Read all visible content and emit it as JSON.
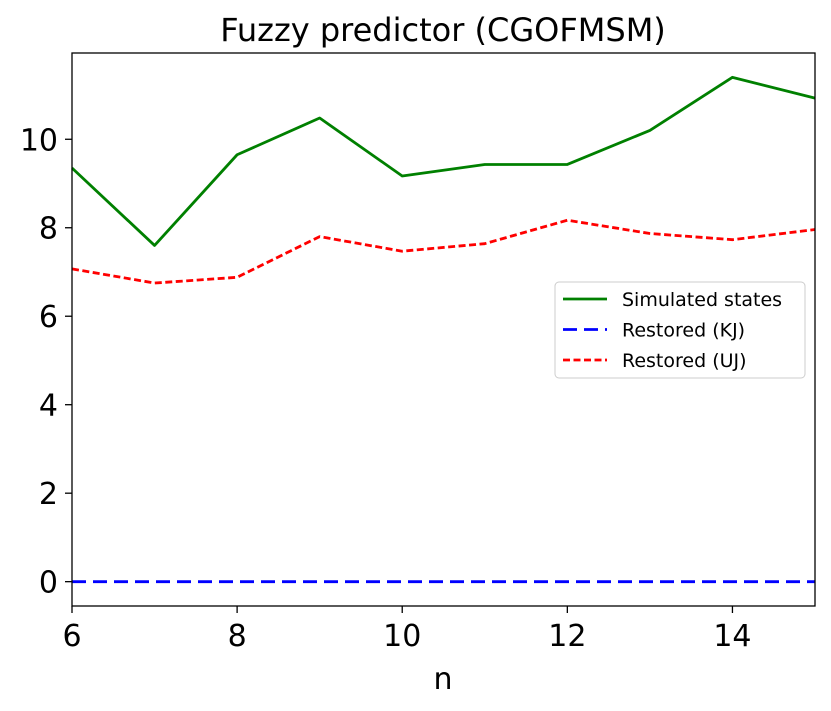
{
  "chart_data": {
    "type": "line",
    "title": "Fuzzy predictor (CGOFMSM)",
    "xlabel": "n",
    "ylabel": "",
    "xlim": [
      6,
      15
    ],
    "ylim": [
      -0.55,
      11.95
    ],
    "xticks": [
      6,
      8,
      10,
      12,
      14
    ],
    "yticks": [
      0,
      2,
      4,
      6,
      8,
      10
    ],
    "grid": false,
    "legend_position": "center-right",
    "x": [
      6,
      7,
      8,
      9,
      10,
      11,
      12,
      13,
      14,
      15
    ],
    "series": [
      {
        "name": "Simulated states",
        "color": "#008000",
        "dash": "solid",
        "values": [
          9.35,
          7.6,
          9.65,
          10.48,
          9.17,
          9.43,
          9.43,
          10.2,
          11.4,
          10.93
        ]
      },
      {
        "name": "Restored (KJ)",
        "color": "#0000ff",
        "dash": "long-dash",
        "values": [
          0,
          0,
          0,
          0,
          0,
          0,
          0,
          0,
          0,
          0
        ]
      },
      {
        "name": "Restored (UJ)",
        "color": "#ff0000",
        "dash": "short-dash",
        "values": [
          7.07,
          6.75,
          6.88,
          7.8,
          7.47,
          7.64,
          8.17,
          7.87,
          7.73,
          7.96
        ]
      }
    ]
  }
}
